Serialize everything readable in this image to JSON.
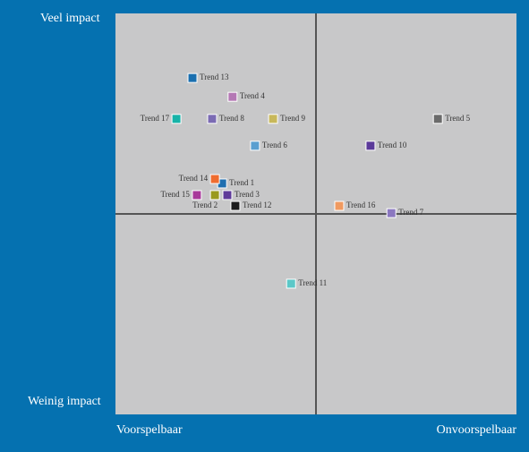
{
  "chart_data": {
    "type": "scatter",
    "xlim": [
      0,
      100
    ],
    "ylim": [
      0,
      100
    ],
    "y_axis_labels": {
      "high": "Veel impact",
      "low": "Weinig impact"
    },
    "x_axis_labels": {
      "low": "Voorspelbaar",
      "high": "Onvoorspelbaar"
    },
    "points": [
      {
        "name": "Trend 1",
        "x": 26.6,
        "y": 57.6,
        "color": "#1f6fb0"
      },
      {
        "name": "Trend 2",
        "x": 24.8,
        "y": 54.7,
        "color": "#9a9a1e"
      },
      {
        "name": "Trend 3",
        "x": 27.9,
        "y": 54.7,
        "color": "#5f3a9a"
      },
      {
        "name": "Trend 4",
        "x": 29.2,
        "y": 79.2,
        "color": "#b478b4"
      },
      {
        "name": "Trend 5",
        "x": 80.4,
        "y": 73.7,
        "color": "#6b6b6b"
      },
      {
        "name": "Trend 6",
        "x": 34.8,
        "y": 67.0,
        "color": "#5a9fd0"
      },
      {
        "name": "Trend 7",
        "x": 68.8,
        "y": 50.2,
        "color": "#8b78c0"
      },
      {
        "name": "Trend 8",
        "x": 24.1,
        "y": 73.7,
        "color": "#7b6bb3"
      },
      {
        "name": "Trend 9",
        "x": 39.3,
        "y": 73.7,
        "color": "#c8b85a"
      },
      {
        "name": "Trend 10",
        "x": 63.6,
        "y": 67.0,
        "color": "#5b3a9a"
      },
      {
        "name": "Trend 11",
        "x": 43.8,
        "y": 32.6,
        "color": "#5cc8c8"
      },
      {
        "name": "Trend 12",
        "x": 29.9,
        "y": 52.0,
        "color": "#1e1e1e"
      },
      {
        "name": "Trend 13",
        "x": 19.2,
        "y": 83.9,
        "color": "#1a6faf"
      },
      {
        "name": "Trend 14",
        "x": 24.8,
        "y": 58.7,
        "color": "#ef6c2f"
      },
      {
        "name": "Trend 15",
        "x": 20.3,
        "y": 54.7,
        "color": "#a8399a"
      },
      {
        "name": "Trend 16",
        "x": 55.8,
        "y": 52.0,
        "color": "#f09a60"
      },
      {
        "name": "Trend 17",
        "x": 15.2,
        "y": 73.7,
        "color": "#17b3a8"
      }
    ]
  }
}
